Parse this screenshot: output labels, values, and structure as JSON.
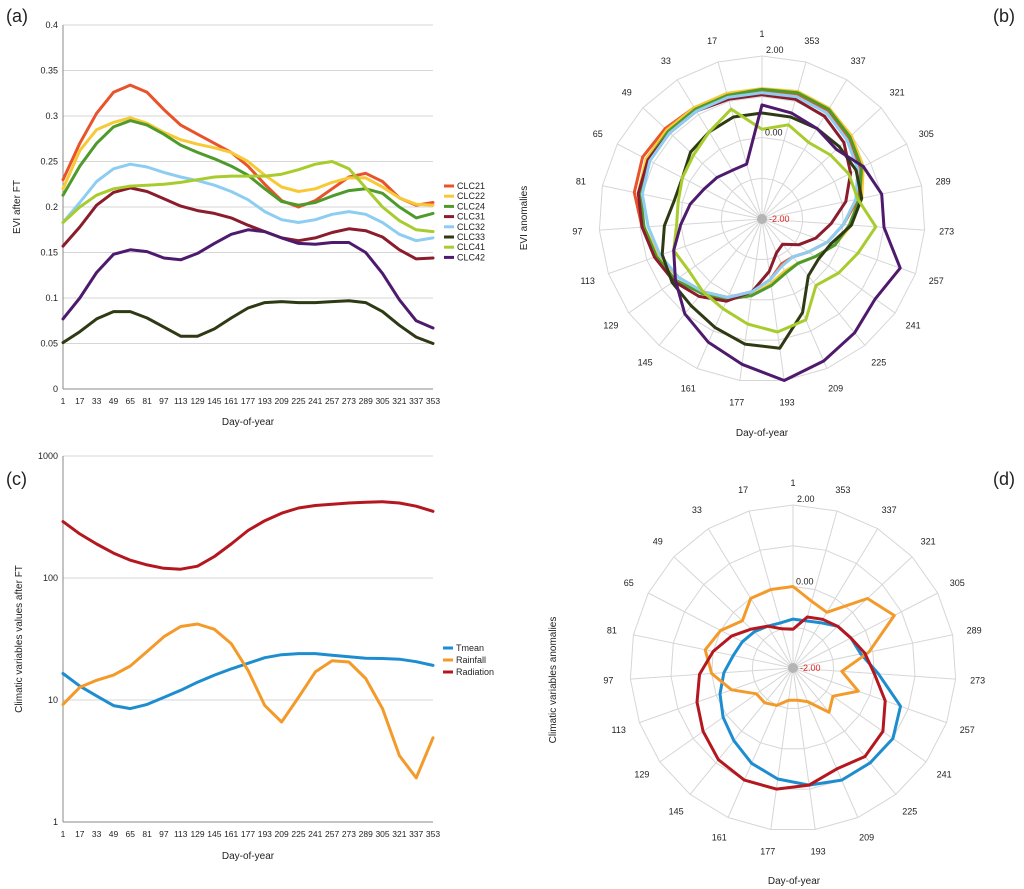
{
  "colors": {
    "CLC21": "#e8532b",
    "CLC22": "#f7c936",
    "CLC24": "#4e9a2a",
    "CLC31": "#8a1c2c",
    "CLC32": "#8ecdf2",
    "CLC33": "#2e3a13",
    "CLC41": "#a8cc2e",
    "CLC42": "#4e1a6e",
    "Tmean": "#1e8dcf",
    "Rainfall": "#f49a2a",
    "Radiation": "#b4171e",
    "grid": "#d6d6d6",
    "center_label": "#e02020"
  },
  "chart_data": [
    {
      "panel_label": "(a)",
      "type": "line",
      "xlabel": "Day-of-year",
      "ylabel": "EVI after FT",
      "ylim": [
        0,
        0.4
      ],
      "yticks": [
        "0",
        "0.05",
        "0.1",
        "0.15",
        "0.2",
        "0.25",
        "0.3",
        "0.35",
        "0.4"
      ],
      "categories": [
        "1",
        "17",
        "33",
        "49",
        "65",
        "81",
        "97",
        "113",
        "129",
        "145",
        "161",
        "177",
        "193",
        "209",
        "225",
        "241",
        "257",
        "273",
        "289",
        "305",
        "321",
        "337",
        "353"
      ],
      "series": [
        {
          "name": "CLC21",
          "values": [
            0.23,
            0.27,
            0.303,
            0.326,
            0.334,
            0.326,
            0.307,
            0.29,
            0.28,
            0.27,
            0.26,
            0.245,
            0.225,
            0.207,
            0.2,
            0.207,
            0.22,
            0.233,
            0.237,
            0.228,
            0.21,
            0.202,
            0.205
          ]
        },
        {
          "name": "CLC22",
          "values": [
            0.22,
            0.262,
            0.285,
            0.293,
            0.298,
            0.292,
            0.282,
            0.274,
            0.269,
            0.265,
            0.26,
            0.25,
            0.235,
            0.222,
            0.217,
            0.22,
            0.227,
            0.232,
            0.232,
            0.222,
            0.21,
            0.203,
            0.202
          ]
        },
        {
          "name": "CLC24",
          "values": [
            0.213,
            0.245,
            0.27,
            0.288,
            0.295,
            0.29,
            0.28,
            0.268,
            0.26,
            0.253,
            0.245,
            0.235,
            0.22,
            0.206,
            0.202,
            0.205,
            0.212,
            0.218,
            0.22,
            0.215,
            0.2,
            0.188,
            0.193
          ]
        },
        {
          "name": "CLC31",
          "values": [
            0.157,
            0.178,
            0.202,
            0.216,
            0.221,
            0.217,
            0.209,
            0.201,
            0.196,
            0.193,
            0.188,
            0.18,
            0.173,
            0.166,
            0.163,
            0.166,
            0.172,
            0.176,
            0.174,
            0.167,
            0.153,
            0.143,
            0.144
          ]
        },
        {
          "name": "CLC32",
          "values": [
            0.183,
            0.205,
            0.228,
            0.242,
            0.247,
            0.244,
            0.238,
            0.233,
            0.229,
            0.224,
            0.217,
            0.208,
            0.195,
            0.186,
            0.183,
            0.186,
            0.192,
            0.195,
            0.192,
            0.183,
            0.17,
            0.163,
            0.166
          ]
        },
        {
          "name": "CLC33",
          "values": [
            0.051,
            0.063,
            0.077,
            0.085,
            0.085,
            0.078,
            0.068,
            0.058,
            0.058,
            0.066,
            0.078,
            0.089,
            0.095,
            0.096,
            0.095,
            0.095,
            0.096,
            0.097,
            0.095,
            0.085,
            0.07,
            0.057,
            0.05
          ]
        },
        {
          "name": "CLC41",
          "values": [
            0.183,
            0.2,
            0.213,
            0.22,
            0.223,
            0.224,
            0.225,
            0.227,
            0.23,
            0.233,
            0.234,
            0.234,
            0.234,
            0.236,
            0.241,
            0.247,
            0.25,
            0.242,
            0.221,
            0.2,
            0.185,
            0.175,
            0.173
          ]
        },
        {
          "name": "CLC42",
          "values": [
            0.077,
            0.1,
            0.128,
            0.148,
            0.153,
            0.151,
            0.144,
            0.142,
            0.149,
            0.16,
            0.17,
            0.175,
            0.173,
            0.166,
            0.16,
            0.159,
            0.161,
            0.161,
            0.15,
            0.127,
            0.098,
            0.075,
            0.067
          ]
        }
      ]
    },
    {
      "panel_label": "(b)",
      "type": "radar",
      "xlabel": "Day-of-year",
      "ylabel": "EVI anomalies",
      "range": [
        -2.0,
        2.0
      ],
      "center_label": "-2.00",
      "ring_label": "0.00",
      "outer_label": "2.00",
      "axis_labels": [
        "1",
        "353",
        "337",
        "321",
        "305",
        "289",
        "273",
        "257",
        "241",
        "225",
        "209",
        "193",
        "177",
        "161",
        "145",
        "129",
        "113",
        "97",
        "81",
        "65",
        "49",
        "33",
        "17"
      ],
      "series": [
        {
          "name": "CLC21",
          "values": [
            1.12,
            1.15,
            1.1,
            0.9,
            0.7,
            0.4,
            0.0,
            -0.3,
            -0.6,
            -0.8,
            -0.8,
            -0.5,
            -0.2,
            0.1,
            0.3,
            0.5,
            0.7,
            0.95,
            1.2,
            1.3,
            1.25,
            1.2,
            1.15
          ]
        },
        {
          "name": "CLC22",
          "values": [
            1.2,
            1.25,
            1.18,
            1.0,
            0.8,
            0.5,
            0.2,
            -0.1,
            -0.4,
            -0.6,
            -0.6,
            -0.4,
            -0.1,
            0.1,
            0.3,
            0.5,
            0.7,
            0.9,
            1.1,
            1.2,
            1.2,
            1.2,
            1.2
          ]
        },
        {
          "name": "CLC24",
          "values": [
            1.18,
            1.22,
            1.15,
            0.95,
            0.75,
            0.45,
            0.15,
            -0.1,
            -0.4,
            -0.6,
            -0.55,
            -0.35,
            -0.1,
            0.15,
            0.35,
            0.6,
            0.75,
            0.9,
            1.05,
            1.15,
            1.15,
            1.15,
            1.15
          ]
        },
        {
          "name": "CLC31",
          "values": [
            1.05,
            1.05,
            0.95,
            0.75,
            0.45,
            0.1,
            -0.3,
            -0.6,
            -0.9,
            -1.2,
            -1.1,
            -0.7,
            -0.2,
            0.2,
            0.45,
            0.65,
            0.8,
            0.95,
            1.1,
            1.15,
            1.1,
            1.1,
            1.05
          ]
        },
        {
          "name": "CLC32",
          "values": [
            1.1,
            1.12,
            1.05,
            0.85,
            0.65,
            0.35,
            0.0,
            -0.3,
            -0.6,
            -0.8,
            -0.75,
            -0.5,
            -0.2,
            0.1,
            0.3,
            0.5,
            0.65,
            0.8,
            1.0,
            1.1,
            1.1,
            1.1,
            1.1
          ]
        },
        {
          "name": "CLC33",
          "values": [
            0.6,
            0.6,
            0.6,
            0.6,
            0.6,
            0.5,
            0.2,
            -0.2,
            -0.3,
            -0.2,
            0.5,
            1.2,
            1.1,
            0.9,
            0.75,
            0.7,
            0.6,
            0.4,
            0.2,
            0.2,
            0.4,
            0.5,
            0.6
          ]
        },
        {
          "name": "CLC41",
          "values": [
            0.2,
            0.4,
            0.2,
            0.3,
            0.4,
            0.4,
            0.8,
            0.5,
            0.3,
            0.1,
            0.7,
            0.8,
            0.6,
            0.4,
            0.3,
            0.2,
            0.3,
            0.1,
            0.1,
            0.2,
            0.3,
            0.5,
            0.8
          ]
        },
        {
          "name": "CLC42",
          "values": [
            0.8,
            0.7,
            0.6,
            0.5,
            0.8,
            1.0,
            1.0,
            1.6,
            1.4,
            1.6,
            1.8,
            2.0,
            1.6,
            1.3,
            1.0,
            0.6,
            0.3,
            0.0,
            -0.2,
            -0.4,
            -0.5,
            -0.6,
            -0.6
          ]
        }
      ]
    },
    {
      "panel_label": "(c)",
      "type": "line",
      "scale": "log",
      "xlabel": "Day-of-year",
      "ylabel": "Climatic variables values after FT",
      "ylim": [
        1,
        1000
      ],
      "yticks": [
        "1",
        "10",
        "100",
        "1000"
      ],
      "categories": [
        "1",
        "17",
        "33",
        "49",
        "65",
        "81",
        "97",
        "113",
        "129",
        "145",
        "161",
        "177",
        "193",
        "209",
        "225",
        "241",
        "257",
        "273",
        "289",
        "305",
        "321",
        "337",
        "353"
      ],
      "series": [
        {
          "name": "Tmean",
          "values": [
            16.5,
            13.0,
            10.8,
            9.0,
            8.5,
            9.2,
            10.5,
            12.0,
            14.0,
            16.0,
            18.0,
            20.0,
            22.2,
            23.5,
            24.0,
            24.0,
            23.3,
            22.6,
            22.0,
            21.9,
            21.6,
            20.6,
            19.2
          ]
        },
        {
          "name": "Rainfall",
          "values": [
            9.2,
            12.7,
            14.5,
            16.0,
            19.0,
            25.0,
            33.0,
            40.0,
            42.0,
            38.0,
            29.0,
            17.5,
            9.0,
            6.6,
            10.5,
            17.0,
            21.0,
            20.5,
            15.0,
            8.5,
            3.5,
            2.3,
            4.9
          ]
        },
        {
          "name": "Radiation",
          "values": [
            290,
            230,
            190,
            160,
            140,
            128,
            120,
            118,
            125,
            150,
            190,
            245,
            295,
            340,
            375,
            393,
            402,
            412,
            418,
            422,
            412,
            388,
            352
          ]
        }
      ]
    },
    {
      "panel_label": "(d)",
      "type": "radar",
      "xlabel": "Day-of-year",
      "ylabel": "Climatic variables anomalies",
      "range": [
        -2.0,
        2.0
      ],
      "center_label": "-2.00",
      "ring_label": "0.00",
      "outer_label": "2.00",
      "axis_labels": [
        "1",
        "353",
        "337",
        "321",
        "305",
        "289",
        "273",
        "257",
        "241",
        "225",
        "209",
        "193",
        "177",
        "161",
        "145",
        "129",
        "113",
        "97",
        "81",
        "65",
        "49",
        "33",
        "17"
      ],
      "series": [
        {
          "name": "Tmean",
          "values": [
            -0.8,
            -0.8,
            -0.7,
            -0.5,
            -0.4,
            -0.3,
            0.1,
            0.8,
            1.0,
            1.0,
            1.0,
            0.9,
            0.75,
            0.55,
            0.3,
            0.1,
            -0.1,
            -0.3,
            -0.5,
            -0.6,
            -0.7,
            -0.8,
            -0.85
          ]
        },
        {
          "name": "Rainfall",
          "values": [
            0.0,
            -0.3,
            -0.4,
            0.5,
            0.8,
            -0.1,
            -0.8,
            -0.3,
            -0.8,
            -0.6,
            -1.1,
            -1.2,
            -1.2,
            -1.0,
            -0.9,
            -0.9,
            -0.4,
            0.0,
            0.2,
            0.0,
            -0.3,
            0.0,
            0.0
          ]
        },
        {
          "name": "Radiation",
          "values": [
            -1.05,
            -0.7,
            -0.6,
            -0.5,
            -0.4,
            -0.2,
            0.0,
            0.4,
            0.7,
            0.8,
            0.7,
            0.9,
            1.0,
            1.0,
            0.9,
            0.7,
            0.5,
            0.3,
            0.0,
            -0.3,
            -0.6,
            -0.8,
            -1.0
          ]
        }
      ]
    }
  ]
}
